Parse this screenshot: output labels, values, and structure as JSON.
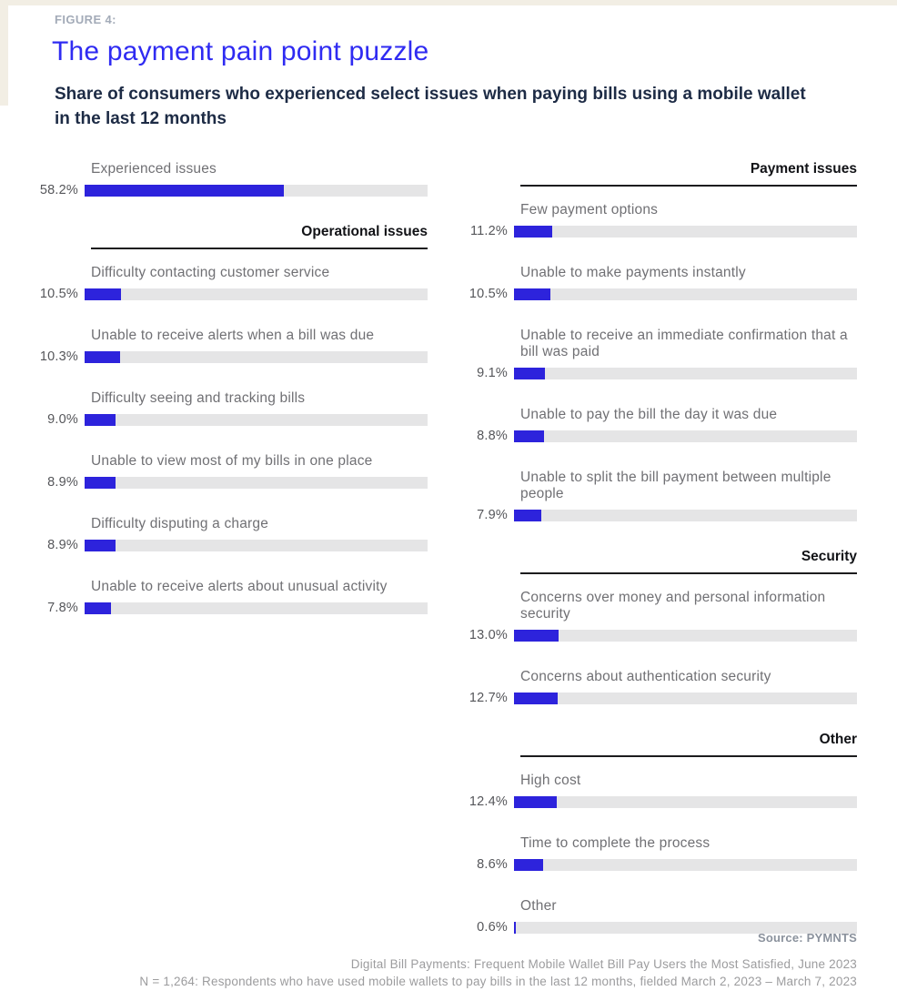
{
  "header": {
    "figure_label": "FIGURE 4:",
    "title": "The payment pain point puzzle",
    "subtitle": "Share of consumers who experienced select issues when paying bills using a mobile wallet in the last 12 months"
  },
  "colors": {
    "bar_fill": "#2d23dc",
    "bar_track": "#e5e5e6",
    "title_accent": "#2f2bf2",
    "subtitle_text": "#1d2b45"
  },
  "chart_data": {
    "type": "bar",
    "orientation": "horizontal",
    "unit": "%",
    "value_range": [
      0,
      100
    ],
    "title": "The payment pain point puzzle",
    "subtitle": "Share of consumers who experienced select issues when paying bills using a mobile wallet in the last 12 months",
    "columns": {
      "left": [
        {
          "section": null,
          "items": [
            {
              "label": "Experienced issues",
              "value": 58.2,
              "value_label": "58.2%"
            }
          ]
        },
        {
          "section": "Operational issues",
          "items": [
            {
              "label": "Difficulty contacting customer service",
              "value": 10.5,
              "value_label": "10.5%"
            },
            {
              "label": "Unable to receive alerts when a bill was due",
              "value": 10.3,
              "value_label": "10.3%"
            },
            {
              "label": "Difficulty seeing and tracking bills",
              "value": 9.0,
              "value_label": "9.0%"
            },
            {
              "label": "Unable to view most of my bills in one place",
              "value": 8.9,
              "value_label": "8.9%"
            },
            {
              "label": "Difficulty disputing a charge",
              "value": 8.9,
              "value_label": "8.9%"
            },
            {
              "label": "Unable to receive alerts about unusual activity",
              "value": 7.8,
              "value_label": "7.8%"
            }
          ]
        }
      ],
      "right": [
        {
          "section": "Payment issues",
          "items": [
            {
              "label": "Few payment options",
              "value": 11.2,
              "value_label": "11.2%"
            },
            {
              "label": "Unable to make payments instantly",
              "value": 10.5,
              "value_label": "10.5%"
            },
            {
              "label": "Unable to receive an immediate confirmation that a bill was paid",
              "value": 9.1,
              "value_label": "9.1%"
            },
            {
              "label": "Unable to pay the bill the day it was due",
              "value": 8.8,
              "value_label": "8.8%"
            },
            {
              "label": "Unable to split the bill payment between multiple people",
              "value": 7.9,
              "value_label": "7.9%"
            }
          ]
        },
        {
          "section": "Security",
          "items": [
            {
              "label": "Concerns over money and personal information security",
              "value": 13.0,
              "value_label": "13.0%"
            },
            {
              "label": "Concerns about authentication security",
              "value": 12.7,
              "value_label": "12.7%"
            }
          ]
        },
        {
          "section": "Other",
          "items": [
            {
              "label": "High cost",
              "value": 12.4,
              "value_label": "12.4%"
            },
            {
              "label": "Time to complete the process",
              "value": 8.6,
              "value_label": "8.6%"
            },
            {
              "label": "Other",
              "value": 0.6,
              "value_label": "0.6%"
            }
          ]
        }
      ]
    }
  },
  "footer": {
    "source": "Source: PYMNTS",
    "line1": "Digital Bill Payments: Frequent Mobile Wallet Bill Pay Users the Most Satisfied, June 2023",
    "line2": "N = 1,264: Respondents who have used mobile wallets to pay bills in the last 12 months, fielded March 2, 2023 – March 7, 2023"
  }
}
